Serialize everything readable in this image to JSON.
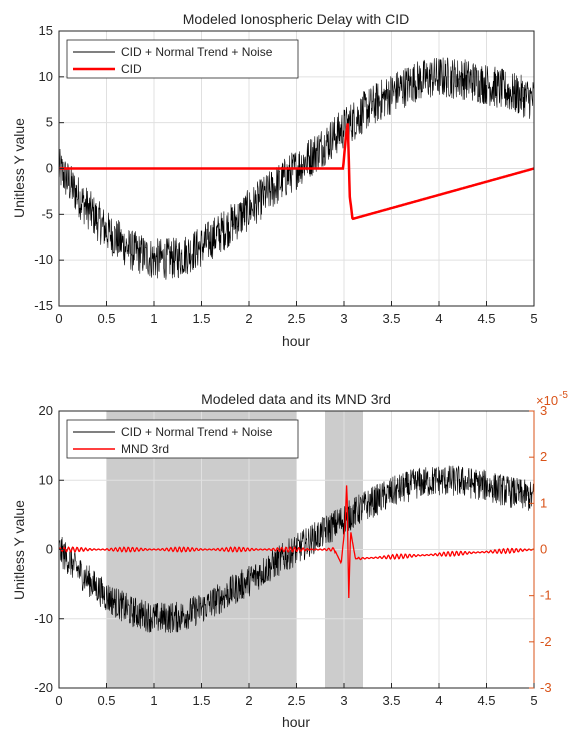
{
  "chart_data": [
    {
      "type": "line",
      "title": "Modeled Ionospheric Delay with CID",
      "xlabel": "hour",
      "ylabel": "Unitless Y value",
      "xlim": [
        0,
        5
      ],
      "ylim": [
        -15,
        15
      ],
      "xticks": [
        "0",
        "0.5",
        "1",
        "1.5",
        "2",
        "2.5",
        "3",
        "3.5",
        "4",
        "4.5",
        "5"
      ],
      "yticks": [
        "-15",
        "-10",
        "-5",
        "0",
        "5",
        "10",
        "15"
      ],
      "grid": true,
      "legend_position": "top-left",
      "series": [
        {
          "name": "CID + Normal Trend + Noise",
          "color": "#000000",
          "x": [
            0,
            0.25,
            0.5,
            0.75,
            1,
            1.25,
            1.5,
            1.75,
            2,
            2.25,
            2.5,
            2.75,
            3,
            3.25,
            3.5,
            3.75,
            4,
            4.25,
            4.5,
            4.75,
            5
          ],
          "y": [
            0,
            -3.7,
            -6.8,
            -8.9,
            -9.9,
            -9.8,
            -8.5,
            -6.6,
            -4.5,
            -2.2,
            0,
            2.2,
            4.4,
            6.5,
            8.2,
            9.5,
            10,
            9.8,
            9.2,
            8.3,
            7.5
          ],
          "noise_amplitude": 2.3
        },
        {
          "name": "CID",
          "color": "#ff0000",
          "x": [
            0,
            2.99,
            3.02,
            3.04,
            3.06,
            3.09,
            5
          ],
          "y": [
            0,
            0,
            3.5,
            5,
            -3,
            -5.5,
            0
          ]
        }
      ]
    },
    {
      "type": "line",
      "title": "Modeled data and its MND 3rd",
      "xlabel": "hour",
      "ylabel": "Unitless Y value",
      "xlim": [
        0,
        5
      ],
      "ylim": [
        -20,
        20
      ],
      "ylim_right": [
        -3,
        3
      ],
      "right_axis_exponent": "-5",
      "xticks": [
        "0",
        "0.5",
        "1",
        "1.5",
        "2",
        "2.5",
        "3",
        "3.5",
        "4",
        "4.5",
        "5"
      ],
      "yticks": [
        "-20",
        "-10",
        "0",
        "10",
        "20"
      ],
      "yticks_right": [
        "-3",
        "-2",
        "-1",
        "0",
        "1",
        "2",
        "3"
      ],
      "grid": true,
      "legend_position": "top-left",
      "shaded_regions": [
        [
          0.5,
          2.5
        ],
        [
          2.8,
          3.2
        ]
      ],
      "series": [
        {
          "name": "CID + Normal Trend + Noise",
          "color": "#000000",
          "x": [
            0,
            0.25,
            0.5,
            0.75,
            1,
            1.25,
            1.5,
            1.75,
            2,
            2.25,
            2.5,
            2.75,
            3,
            3.25,
            3.5,
            3.75,
            4,
            4.25,
            4.5,
            4.75,
            5
          ],
          "y": [
            0,
            -3.7,
            -6.8,
            -8.9,
            -9.9,
            -9.8,
            -8.5,
            -6.6,
            -4.5,
            -2.2,
            0,
            2.2,
            4.4,
            6.5,
            8.2,
            9.5,
            10,
            9.8,
            9.2,
            8.3,
            7.5
          ],
          "noise_amplitude": 2.3
        },
        {
          "name": "MND 3rd",
          "color": "#ff0000",
          "axis": "right",
          "x": [
            0,
            2.9,
            2.97,
            3.01,
            3.03,
            3.05,
            3.07,
            3.12,
            5
          ],
          "y": [
            0,
            0,
            -0.3,
            0.5,
            1.5,
            -1.05,
            0.4,
            -0.2,
            0
          ],
          "ripple_amplitude": 0.05
        }
      ]
    }
  ]
}
